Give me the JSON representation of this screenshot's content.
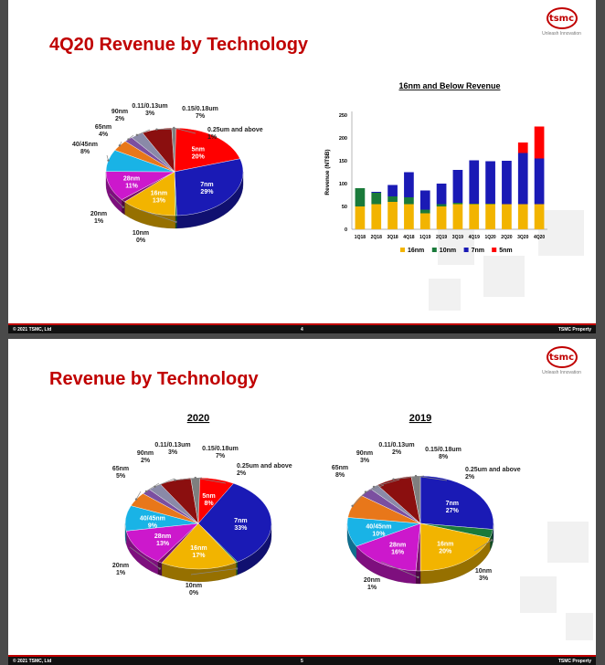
{
  "slides": [
    {
      "title": "4Q20 Revenue by Technology",
      "footer": {
        "copyright": "© 2021 TSMC, Ltd",
        "page": "4",
        "property": "TSMC Property"
      }
    },
    {
      "title": "Revenue by Technology",
      "footer": {
        "copyright": "© 2021 TSMC, Ltd",
        "page": "5",
        "property": "TSMC Property"
      }
    }
  ],
  "logo": {
    "text": "tsmc",
    "tagline": "Unleash Innovation"
  },
  "colors": {
    "5nm": "#ff0000",
    "7nm": "#1a1ab5",
    "10nm": "#1a7a3a",
    "16nm": "#f2b400",
    "20nm": "#7a0f6b",
    "28nm": "#cc18cc",
    "40/45nm": "#19b3e6",
    "65nm": "#e8771a",
    "90nm": "#7b4fa0",
    "0.11/0.13um": "#8a8aa8",
    "0.15/0.18um": "#8b0f0f",
    "0.25um and above": "#7f7f7f"
  },
  "chart_data": [
    {
      "type": "pie",
      "title": "",
      "slices": [
        {
          "label": "5nm",
          "value": 20
        },
        {
          "label": "7nm",
          "value": 29
        },
        {
          "label": "10nm",
          "value": 0
        },
        {
          "label": "16nm",
          "value": 13
        },
        {
          "label": "20nm",
          "value": 1
        },
        {
          "label": "28nm",
          "value": 11
        },
        {
          "label": "40/45nm",
          "value": 8
        },
        {
          "label": "65nm",
          "value": 4
        },
        {
          "label": "90nm",
          "value": 2
        },
        {
          "label": "0.11/0.13um",
          "value": 3
        },
        {
          "label": "0.15/0.18um",
          "value": 7
        },
        {
          "label": "0.25um and above",
          "value": 1
        }
      ]
    },
    {
      "type": "bar",
      "stacked": true,
      "title": "16nm and Below Revenue",
      "xlabel": "",
      "ylabel": "Revenue (NT$B)",
      "ylim": [
        0,
        250
      ],
      "yticks": [
        0,
        50,
        100,
        150,
        200,
        250
      ],
      "legend": "bottom",
      "categories": [
        "1Q18",
        "2Q18",
        "3Q18",
        "4Q18",
        "1Q19",
        "2Q19",
        "3Q19",
        "4Q19",
        "1Q20",
        "2Q20",
        "3Q20",
        "4Q20"
      ],
      "series": [
        {
          "name": "16nm",
          "values": [
            50,
            55,
            60,
            55,
            35,
            50,
            55,
            55,
            55,
            55,
            55,
            55
          ]
        },
        {
          "name": "10nm",
          "values": [
            40,
            25,
            12,
            15,
            8,
            5,
            3,
            1,
            1,
            0,
            0,
            0
          ]
        },
        {
          "name": "7nm",
          "values": [
            0,
            2,
            25,
            55,
            42,
            45,
            72,
            95,
            93,
            95,
            112,
            100
          ]
        },
        {
          "name": "5nm",
          "values": [
            0,
            0,
            0,
            0,
            0,
            0,
            0,
            0,
            0,
            0,
            23,
            70
          ]
        }
      ]
    },
    {
      "type": "pie",
      "title": "2020",
      "slices": [
        {
          "label": "5nm",
          "value": 8
        },
        {
          "label": "7nm",
          "value": 33
        },
        {
          "label": "10nm",
          "value": 0
        },
        {
          "label": "16nm",
          "value": 17
        },
        {
          "label": "20nm",
          "value": 1
        },
        {
          "label": "28nm",
          "value": 13
        },
        {
          "label": "40/45nm",
          "value": 9
        },
        {
          "label": "65nm",
          "value": 5
        },
        {
          "label": "90nm",
          "value": 2
        },
        {
          "label": "0.11/0.13um",
          "value": 3
        },
        {
          "label": "0.15/0.18um",
          "value": 7
        },
        {
          "label": "0.25um and above",
          "value": 2
        }
      ]
    },
    {
      "type": "pie",
      "title": "2019",
      "slices": [
        {
          "label": "7nm",
          "value": 27
        },
        {
          "label": "10nm",
          "value": 3
        },
        {
          "label": "16nm",
          "value": 20
        },
        {
          "label": "20nm",
          "value": 1
        },
        {
          "label": "28nm",
          "value": 16
        },
        {
          "label": "40/45nm",
          "value": 10
        },
        {
          "label": "65nm",
          "value": 8
        },
        {
          "label": "90nm",
          "value": 3
        },
        {
          "label": "0.11/0.13um",
          "value": 2
        },
        {
          "label": "0.15/0.18um",
          "value": 8
        },
        {
          "label": "0.25um and above",
          "value": 2
        }
      ]
    }
  ]
}
